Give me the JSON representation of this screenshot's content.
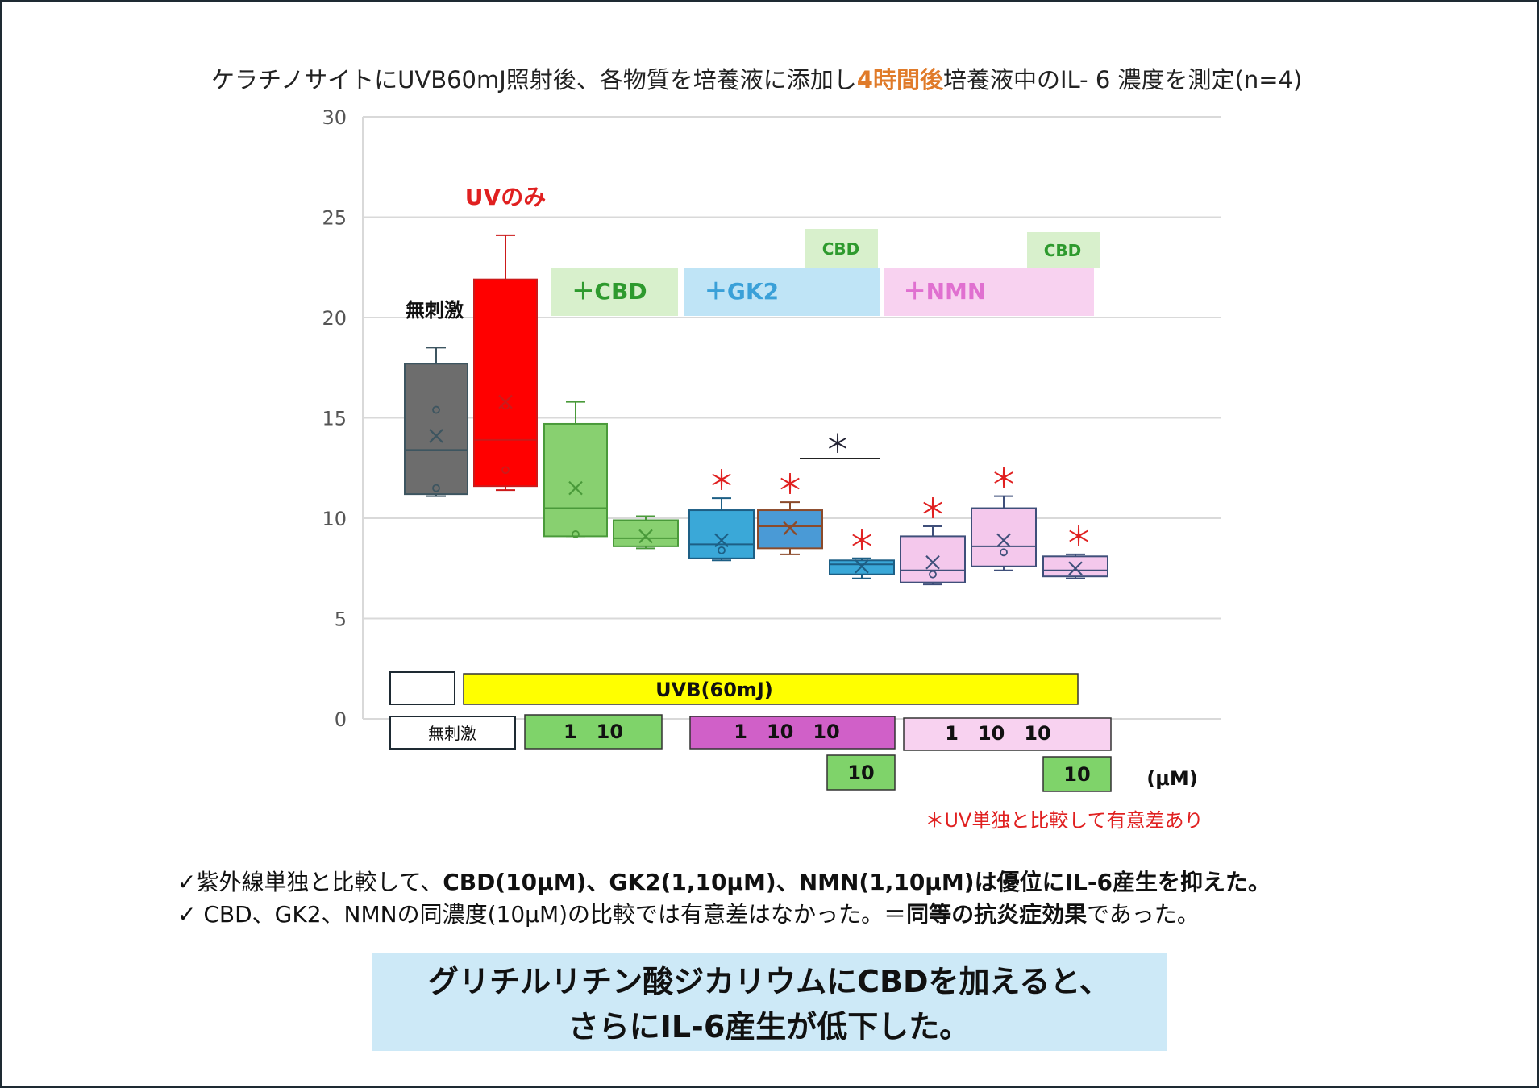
{
  "title": {
    "prefix": "ケラチノサイトにUVB60mJ照射後、各物質を培養液に添加し",
    "highlight": "4時間後",
    "suffix": "培養液中のIL- 6 濃度を測定(n=4)"
  },
  "colors": {
    "gray": "#6d6d6d",
    "red": "#ff0000",
    "green": "#88d070",
    "blue": "#3aa8d8",
    "brown": "#4a9ad6",
    "pink": "#f4c8ec",
    "yellow": "#ffff00",
    "magenta": "#d060c8",
    "sig_red": "#e02020",
    "label_green": "#2e9a2e",
    "label_blue": "#3aa0d8",
    "label_pink": "#e070d0"
  },
  "chart_data": {
    "type": "box",
    "ylim": [
      0,
      30
    ],
    "yticks": [
      "0",
      "5",
      "10",
      "15",
      "20",
      "25",
      "30"
    ],
    "yticks_values": [
      0,
      5,
      10,
      15,
      20,
      25,
      30
    ],
    "boxes": [
      {
        "group": "無刺激",
        "min": 11.1,
        "q1": 11.2,
        "median": 13.4,
        "q3": 17.7,
        "max": 18.5,
        "mean": 14.1,
        "outliers": [
          15.4,
          11.5
        ],
        "color": "gray",
        "sig": ""
      },
      {
        "group": "UVのみ",
        "min": 11.4,
        "q1": 11.6,
        "median": 13.9,
        "q3": 21.9,
        "max": 24.1,
        "mean": 15.8,
        "outliers": [
          15.6,
          12.4
        ],
        "color": "red",
        "sig": ""
      },
      {
        "group": "CBD 1",
        "min": 9.1,
        "q1": 9.1,
        "median": 10.5,
        "q3": 14.7,
        "max": 15.8,
        "mean": 11.5,
        "outliers": [
          9.2
        ],
        "color": "green",
        "sig": ""
      },
      {
        "group": "CBD 10",
        "min": 8.5,
        "q1": 8.6,
        "median": 9.0,
        "q3": 9.9,
        "max": 10.1,
        "mean": 9.1,
        "outliers": [],
        "color": "green",
        "sig": ""
      },
      {
        "group": "GK2 1",
        "min": 7.9,
        "q1": 8.0,
        "median": 8.7,
        "q3": 10.4,
        "max": 11.0,
        "mean": 8.9,
        "outliers": [
          8.4
        ],
        "color": "blue",
        "sig": "*"
      },
      {
        "group": "GK2 10",
        "min": 8.2,
        "q1": 8.5,
        "median": 9.6,
        "q3": 10.4,
        "max": 10.8,
        "mean": 9.5,
        "outliers": [],
        "color": "brown",
        "sig": "*"
      },
      {
        "group": "GK2 10 + CBD 10",
        "min": 7.0,
        "q1": 7.2,
        "median": 7.7,
        "q3": 7.9,
        "max": 8.0,
        "mean": 7.6,
        "outliers": [],
        "color": "blue",
        "sig": "*"
      },
      {
        "group": "NMN 1",
        "min": 6.7,
        "q1": 6.8,
        "median": 7.4,
        "q3": 9.1,
        "max": 9.6,
        "mean": 7.8,
        "outliers": [
          7.2
        ],
        "color": "pink",
        "sig": "*"
      },
      {
        "group": "NMN 10",
        "min": 7.4,
        "q1": 7.6,
        "median": 8.6,
        "q3": 10.5,
        "max": 11.1,
        "mean": 8.9,
        "outliers": [
          8.3
        ],
        "color": "pink",
        "sig": "*"
      },
      {
        "group": "NMN 10 + CBD 10",
        "min": 7.0,
        "q1": 7.1,
        "median": 7.4,
        "q3": 8.1,
        "max": 8.2,
        "mean": 7.5,
        "outliers": [],
        "color": "pink",
        "sig": "*"
      }
    ],
    "annotations": {
      "no_stim": "無刺激",
      "uv_only": "UVのみ",
      "plus_cbd": "＋CBD",
      "plus_gk2": "＋GK2",
      "plus_nmn": "＋NMN",
      "cbd_small": "CBD",
      "bracket_star": "＊",
      "sig_star": "＊"
    },
    "legend_rows": {
      "uvb": "UVB(60mJ)",
      "no_stim": "無刺激",
      "cbd_conc": "1　10",
      "gk2_conc": "1　10　10",
      "nmn_conc": "1　10　10",
      "cbd_add_gk2": "10",
      "cbd_add_nmn": "10",
      "unit": "(μM)"
    },
    "sig_note": "＊UV単独と比較して有意差あり"
  },
  "notes": [
    {
      "plain": "✓紫外線単独と比較して、",
      "bold": "CBD(10μM)、GK2(1,10μM)、NMN(1,10μM)は優位にIL-6産生を抑えた。",
      "tail": ""
    },
    {
      "plain": "✓ CBD、GK2、NMNの同濃度(10μM)の比較では有意差はなかった。＝",
      "bold": "同等の抗炎症効果",
      "tail": "であった。"
    }
  ],
  "conclusion": {
    "line1": "グリチルリチン酸ジカリウムにCBDを加えると、",
    "line2": "さらにIL-6産生が低下した。"
  }
}
